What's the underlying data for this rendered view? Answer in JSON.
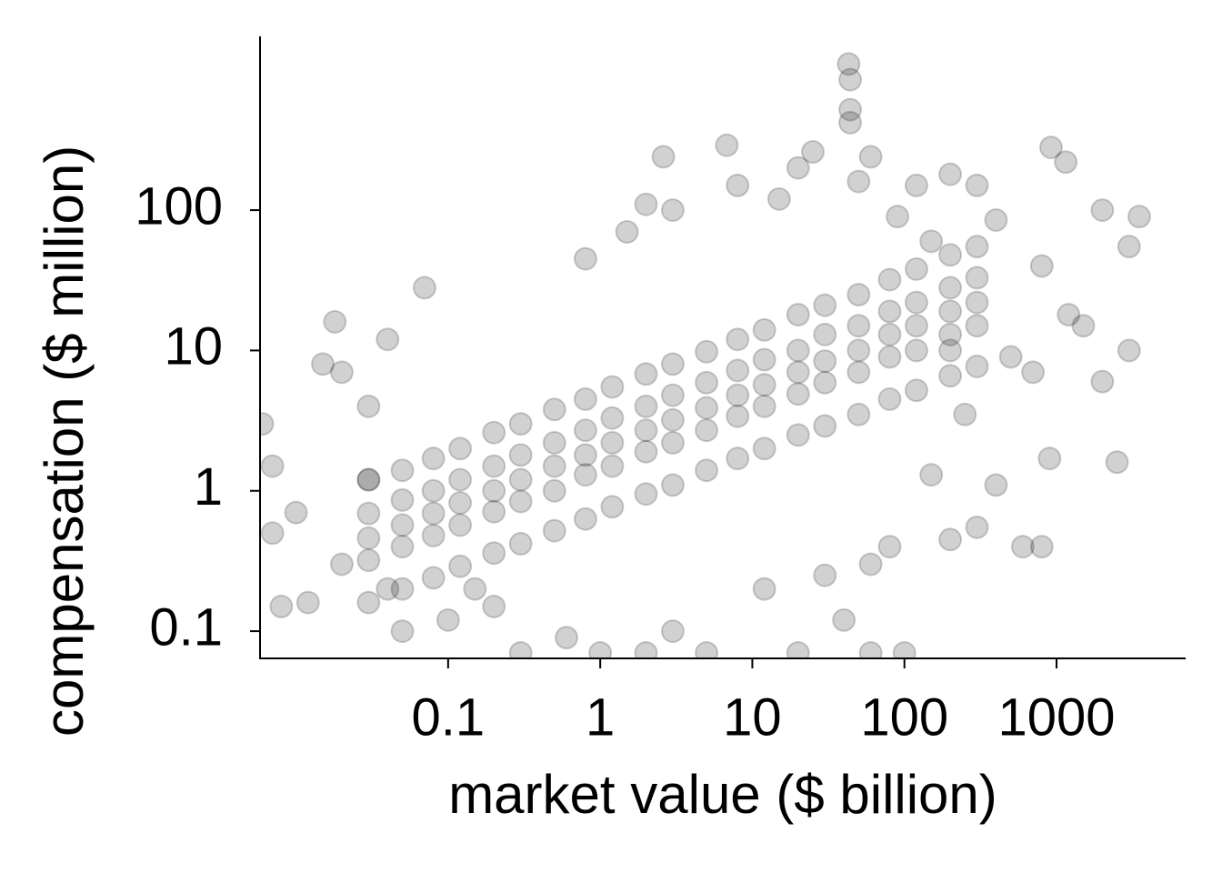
{
  "chart_data": {
    "type": "scatter",
    "x_label": "market value ($ billion)",
    "y_label": "compensation ($ million)",
    "xscale": "log",
    "yscale": "log",
    "xlim": [
      0.0058,
      7060
    ],
    "ylim": [
      0.064,
      1730
    ],
    "xticks": [
      0.1,
      1,
      10,
      100,
      1000
    ],
    "yticks": [
      0.1,
      1,
      10,
      100
    ],
    "color": "#000000",
    "alpha": 0.18,
    "grid": false,
    "x": [
      43,
      44,
      44,
      44,
      6.8,
      920,
      1150,
      2.6,
      0.07,
      0.018,
      0.006,
      0.007,
      0.007,
      0.008,
      0.01,
      0.012,
      2000,
      3500,
      3000,
      800,
      1500,
      2000,
      2500,
      900,
      600,
      800,
      300,
      200,
      150,
      400,
      250,
      200,
      500,
      700,
      1200,
      3000,
      0.3,
      1,
      2,
      5,
      20,
      60,
      100,
      3,
      12,
      30,
      60,
      0.6,
      40,
      80,
      0.8,
      1.5,
      2,
      3,
      8,
      15,
      20,
      25,
      50,
      60,
      120,
      200,
      300,
      400,
      150,
      90,
      0.015,
      0.02,
      0.03,
      0.04,
      0.03,
      0.02,
      0.04,
      0.05,
      0.1,
      0.15,
      0.2,
      0.03,
      0.03,
      0.03,
      0.03,
      0.03,
      0.05,
      0.05,
      0.05,
      0.05,
      0.05,
      0.08,
      0.08,
      0.08,
      0.08,
      0.08,
      0.12,
      0.12,
      0.12,
      0.12,
      0.12,
      0.2,
      0.2,
      0.2,
      0.2,
      0.2,
      0.3,
      0.3,
      0.3,
      0.3,
      0.3,
      0.5,
      0.5,
      0.5,
      0.5,
      0.5,
      0.8,
      0.8,
      0.8,
      0.8,
      0.8,
      1.2,
      1.2,
      1.2,
      1.2,
      1.2,
      2,
      2,
      2,
      2,
      2,
      3,
      3,
      3,
      3,
      3,
      5,
      5,
      5,
      5,
      5,
      8,
      8,
      8,
      8,
      8,
      12,
      12,
      12,
      12,
      12,
      20,
      20,
      20,
      20,
      20,
      30,
      30,
      30,
      30,
      30,
      50,
      50,
      50,
      50,
      50,
      80,
      80,
      80,
      80,
      80,
      120,
      120,
      120,
      120,
      120,
      200,
      200,
      200,
      200,
      200,
      300,
      300,
      300,
      300,
      300
    ],
    "values": [
      1100,
      850,
      520,
      420,
      290,
      280,
      220,
      240,
      28,
      16,
      3,
      1.5,
      0.5,
      0.15,
      0.7,
      0.16,
      100,
      90,
      55,
      40,
      15,
      6,
      1.6,
      1.7,
      0.4,
      0.4,
      0.55,
      0.45,
      1.3,
      1.1,
      3.5,
      10,
      9,
      7,
      18,
      10,
      0.07,
      0.07,
      0.07,
      0.07,
      0.07,
      0.07,
      0.07,
      0.1,
      0.2,
      0.25,
      0.3,
      0.09,
      0.12,
      0.4,
      45,
      70,
      110,
      100,
      150,
      120,
      200,
      260,
      160,
      240,
      150,
      180,
      150,
      85,
      60,
      90,
      8,
      7,
      4,
      12,
      1.2,
      0.3,
      0.2,
      0.1,
      0.12,
      0.2,
      0.15,
      0.16,
      0.32,
      0.46,
      0.69,
      1.2,
      0.2,
      0.4,
      0.57,
      0.86,
      1.4,
      0.24,
      0.48,
      0.69,
      1,
      1.7,
      0.29,
      0.57,
      0.82,
      1.2,
      2,
      0.36,
      0.71,
      1,
      1.5,
      2.6,
      0.42,
      0.84,
      1.2,
      1.8,
      3,
      0.52,
      1,
      1.5,
      2.2,
      3.8,
      0.63,
      1.3,
      1.8,
      2.7,
      4.5,
      0.77,
      1.5,
      2.2,
      3.3,
      5.5,
      0.95,
      1.9,
      2.7,
      4,
      6.8,
      1.1,
      2.2,
      3.2,
      4.8,
      8,
      1.4,
      2.7,
      3.9,
      5.9,
      9.8,
      1.7,
      3.4,
      4.8,
      7.2,
      12,
      2,
      4,
      5.7,
      8.6,
      14,
      2.5,
      4.9,
      7,
      10,
      18,
      2.9,
      5.9,
      8.4,
      13,
      21,
      3.5,
      7,
      10,
      15,
      25,
      4.5,
      9,
      13,
      19,
      32,
      5.2,
      10,
      15,
      22,
      38,
      6.6,
      13,
      19,
      28,
      48,
      7.7,
      15,
      22,
      33,
      55
    ]
  }
}
